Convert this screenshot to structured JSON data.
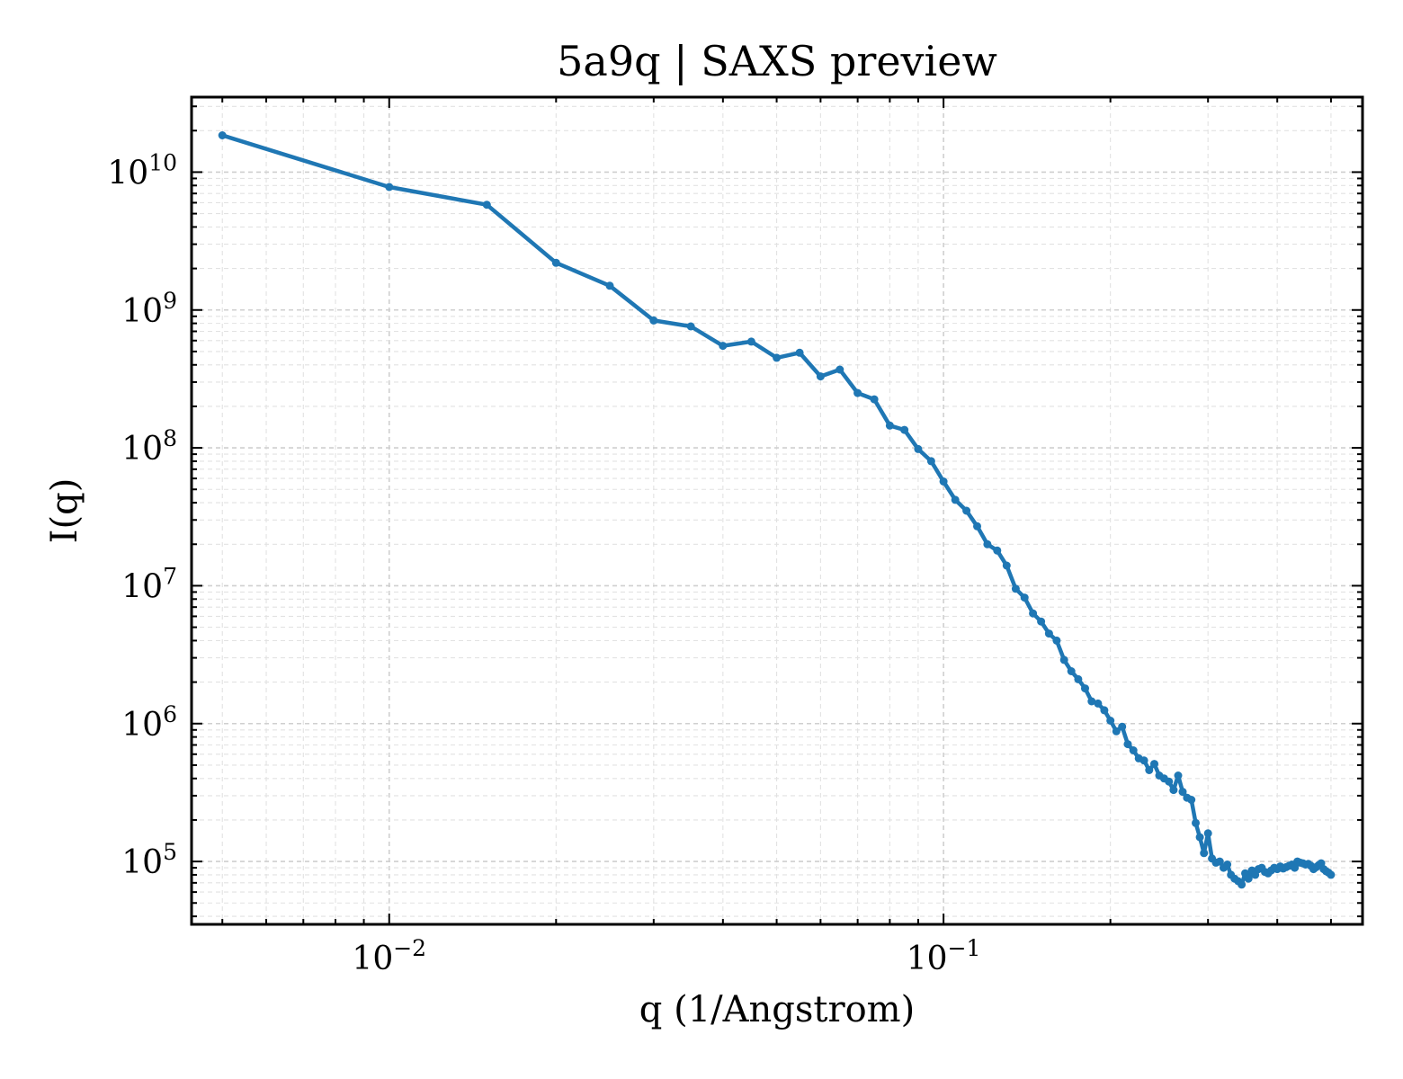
{
  "chart_data": {
    "type": "line",
    "title": "5a9q | SAXS preview",
    "xlabel": "q (1/Angstrom)",
    "ylabel": "I(q)",
    "xscale": "log",
    "yscale": "log",
    "xlim": [
      0.0044,
      0.57
    ],
    "ylim": [
      35000,
      35000000000
    ],
    "grid": true,
    "legend": "none",
    "line_color": "#1f77b4",
    "x_ticks": [
      {
        "base": "10",
        "exp": "−2",
        "value": 0.01
      },
      {
        "base": "10",
        "exp": "−1",
        "value": 0.1
      }
    ],
    "y_ticks": [
      {
        "base": "10",
        "exp": "5",
        "value": 100000
      },
      {
        "base": "10",
        "exp": "6",
        "value": 1000000
      },
      {
        "base": "10",
        "exp": "7",
        "value": 10000000
      },
      {
        "base": "10",
        "exp": "8",
        "value": 100000000
      },
      {
        "base": "10",
        "exp": "9",
        "value": 1000000000
      },
      {
        "base": "10",
        "exp": "10",
        "value": 10000000000
      }
    ],
    "series": [
      {
        "x": [
          0.005,
          0.01,
          0.015,
          0.02,
          0.025,
          0.03,
          0.035,
          0.04,
          0.045,
          0.05,
          0.055,
          0.06,
          0.065,
          0.07,
          0.075,
          0.08,
          0.085,
          0.09,
          0.095,
          0.1,
          0.105,
          0.11,
          0.115,
          0.12,
          0.125,
          0.13,
          0.135,
          0.14,
          0.145,
          0.15,
          0.155,
          0.16,
          0.165,
          0.17,
          0.175,
          0.18,
          0.185,
          0.19,
          0.195,
          0.2,
          0.205,
          0.21,
          0.215,
          0.22,
          0.225,
          0.23,
          0.235,
          0.24,
          0.245,
          0.25,
          0.255,
          0.26,
          0.265,
          0.27,
          0.275,
          0.28,
          0.285,
          0.29,
          0.295,
          0.3,
          0.305,
          0.31,
          0.315,
          0.32,
          0.325,
          0.33,
          0.335,
          0.34,
          0.345,
          0.35,
          0.355,
          0.36,
          0.365,
          0.37,
          0.375,
          0.38,
          0.385,
          0.39,
          0.395,
          0.4,
          0.405,
          0.41,
          0.415,
          0.42,
          0.425,
          0.43,
          0.435,
          0.44,
          0.445,
          0.45,
          0.455,
          0.46,
          0.465,
          0.47,
          0.475,
          0.48,
          0.485,
          0.49,
          0.495,
          0.5
        ],
        "y": [
          18500000000,
          7800000000,
          5800000000,
          2200000000,
          1500000000,
          840000000,
          760000000,
          550000000,
          590000000,
          450000000,
          490000000,
          330000000,
          370000000,
          250000000,
          225000000,
          145000000,
          135000000,
          98000000,
          80000000,
          57000000,
          42000000,
          35000000,
          27000000,
          20000000,
          18000000,
          14000000,
          9500000,
          8200000,
          6300000,
          5500000,
          4500000,
          4000000,
          2900000,
          2400000,
          2100000,
          1800000,
          1450000,
          1400000,
          1250000,
          1050000,
          880000,
          950000,
          710000,
          640000,
          560000,
          540000,
          460000,
          510000,
          420000,
          400000,
          380000,
          330000,
          420000,
          320000,
          290000,
          280000,
          190000,
          150000,
          115000,
          160000,
          105000,
          98000,
          100000,
          90000,
          95000,
          80000,
          75000,
          72000,
          68000,
          82000,
          75000,
          86000,
          80000,
          88000,
          90000,
          84000,
          82000,
          86000,
          90000,
          88000,
          92000,
          89000,
          91000,
          93000,
          95000,
          90000,
          100000,
          98000,
          97000,
          95000,
          96000,
          93000,
          88000,
          91000,
          94000,
          97000,
          88000,
          85000,
          83000,
          80000
        ]
      }
    ]
  }
}
